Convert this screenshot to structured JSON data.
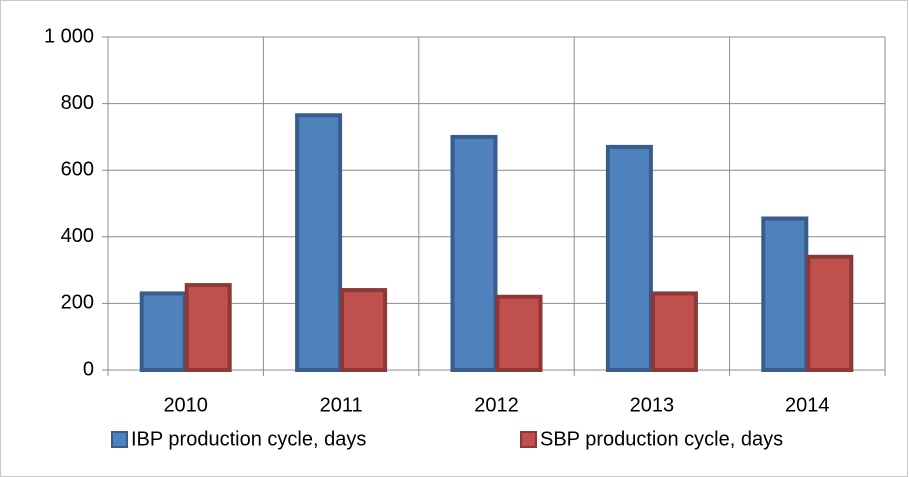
{
  "chart_data": {
    "type": "bar",
    "categories": [
      "2010",
      "2011",
      "2012",
      "2013",
      "2014"
    ],
    "series": [
      {
        "name": "IBP production cycle, days",
        "color": "#4f81bd",
        "stroke": "#385d8a",
        "values": [
          230,
          765,
          700,
          670,
          455
        ]
      },
      {
        "name": "SBP production cycle, days",
        "color": "#c0504d",
        "stroke": "#8c3836",
        "values": [
          255,
          240,
          220,
          230,
          340
        ]
      }
    ],
    "ylim": [
      0,
      1000
    ],
    "yticks": [
      0,
      200,
      400,
      600,
      800,
      {
        "value": 1000,
        "label": "1 000"
      }
    ],
    "grid": true,
    "legend": "bottom"
  }
}
